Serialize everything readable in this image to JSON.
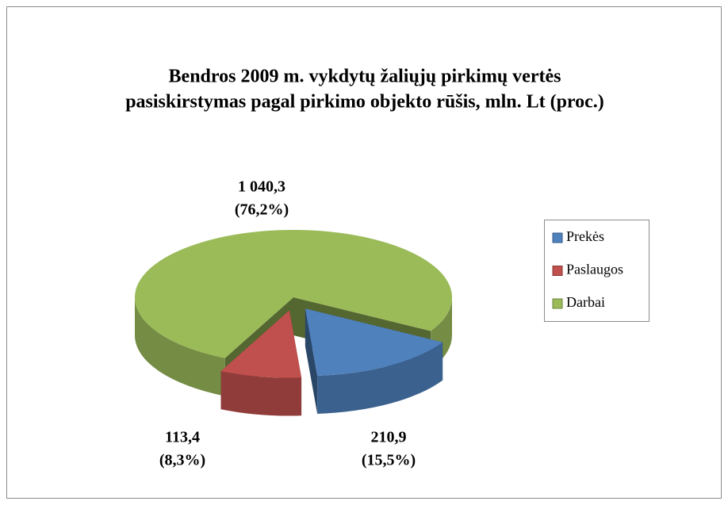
{
  "chart_data": {
    "type": "pie",
    "title": [
      "Bendros 2009 m. vykdytų žaliųjų pirkimų vertės",
      "pasiskirstymas pagal pirkimo objekto rūšis, mln. Lt (proc.)"
    ],
    "categories": [
      "Prekės",
      "Paslaugos",
      "Darbai"
    ],
    "values": [
      210.9,
      113.4,
      1040.3
    ],
    "value_labels": [
      "210,9",
      "113,4",
      "1 040,3"
    ],
    "percents": [
      15.5,
      8.3,
      76.2
    ],
    "percent_labels": [
      "(15,5%)",
      "(8,3%)",
      "(76,2%)"
    ],
    "colors": [
      "#4f81bd",
      "#c0504d",
      "#9bbb59"
    ],
    "legend": "right"
  }
}
